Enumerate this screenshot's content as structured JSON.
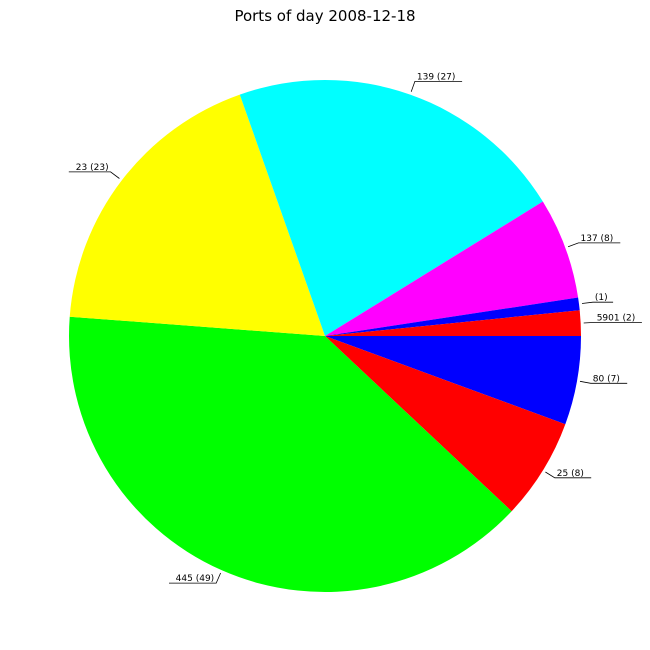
{
  "chart_data": {
    "type": "pie",
    "title": "Ports of day 2008-12-18",
    "slices": [
      {
        "label": "80 (7)",
        "value": 7,
        "color": "#0000ff"
      },
      {
        "label": "25 (8)",
        "value": 8,
        "color": "#ff0000"
      },
      {
        "label": "445 (49)",
        "value": 49,
        "color": "#00ff00"
      },
      {
        "label": "23 (23)",
        "value": 23,
        "color": "#ffff00"
      },
      {
        "label": "139 (27)",
        "value": 27,
        "color": "#00ffff"
      },
      {
        "label": "137 (8)",
        "value": 8,
        "color": "#ff00ff"
      },
      {
        "label": "(1)",
        "value": 1,
        "color": "#0000ff"
      },
      {
        "label": "5901 (2)",
        "value": 2,
        "color": "#ff0000"
      }
    ]
  }
}
